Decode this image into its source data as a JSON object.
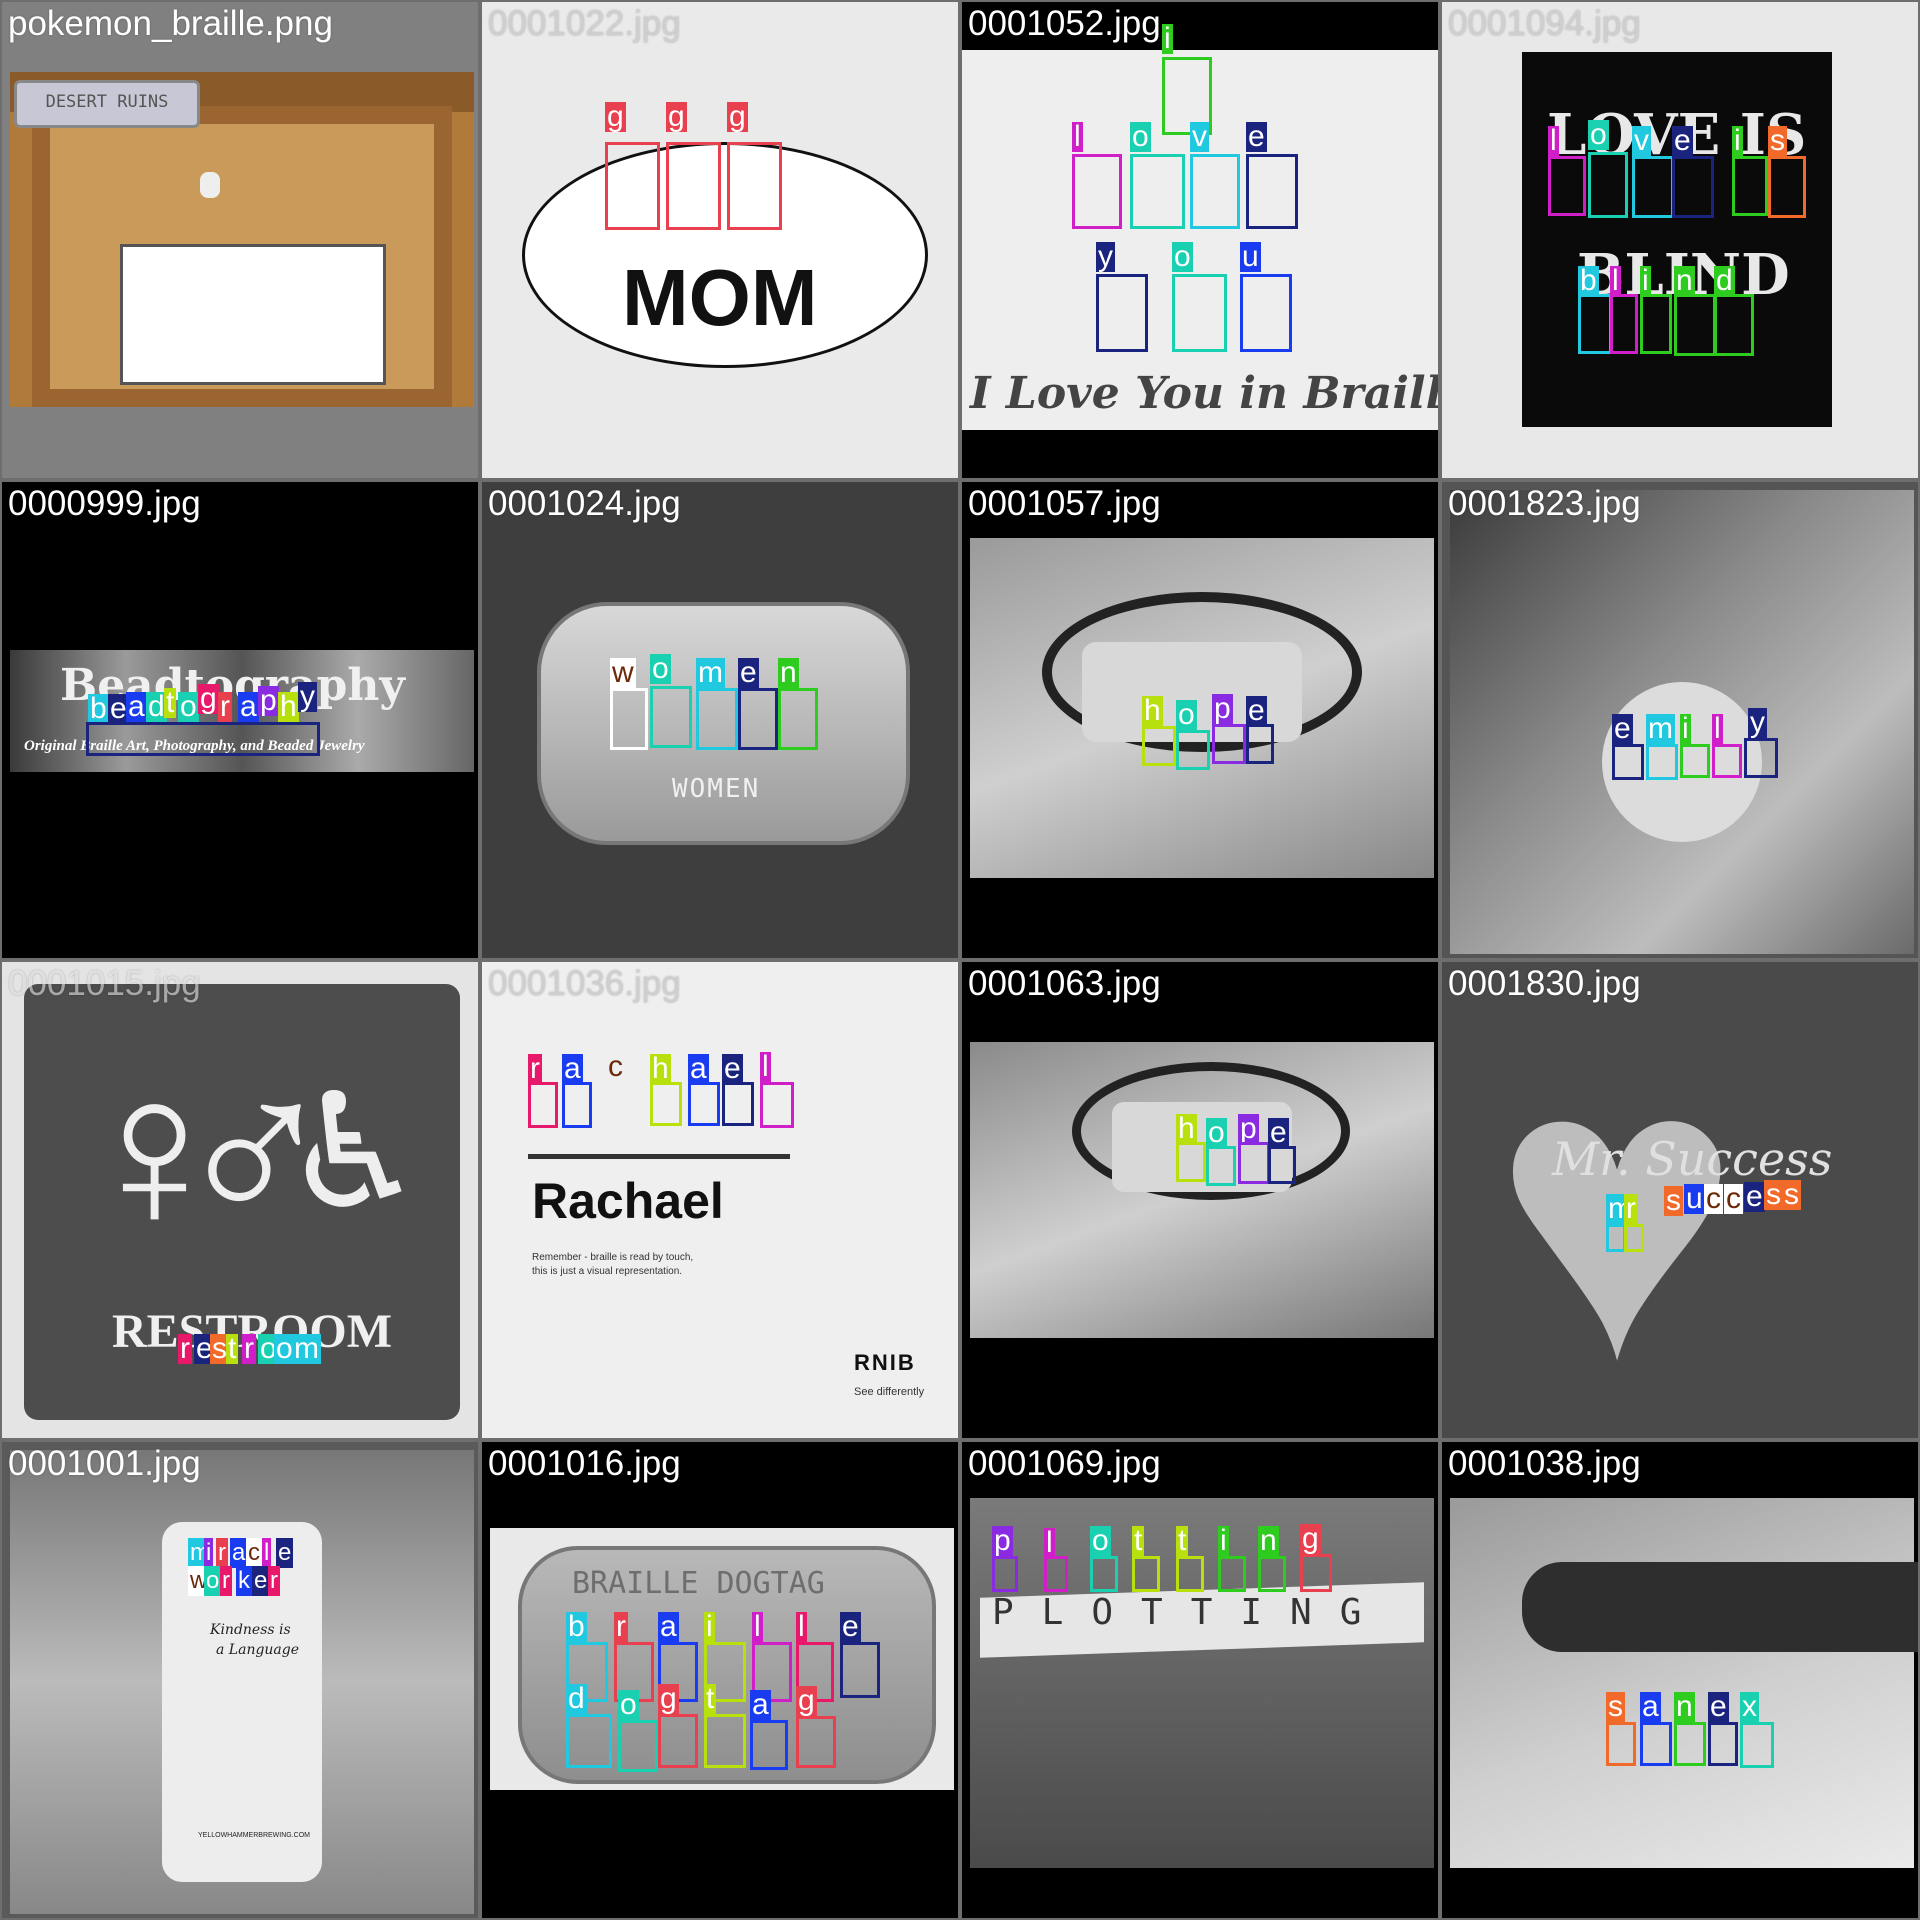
{
  "colors": {
    "red": "#e8404f",
    "teal": "#19d0b0",
    "cyan": "#20c8e0",
    "green": "#2ecc1f",
    "lime": "#b8e00c",
    "purple": "#8a2be2",
    "magenta": "#d01fc8",
    "navy": "#1a237e",
    "blue": "#1a3cf0",
    "orange": "#f26a2a",
    "pink": "#e8186a",
    "brown": "#6b2a0a"
  },
  "tiles": [
    {
      "file": "pokemon_braille.png",
      "sign": "DESERT RUINS"
    },
    {
      "file": "0001022.jpg",
      "caption": "MOM",
      "labels": [
        "g",
        "g",
        "g"
      ]
    },
    {
      "file": "0001052.jpg",
      "caption": "I Love You in Braille",
      "labels": [
        "i",
        "l",
        "o",
        "v",
        "e",
        "y",
        "o",
        "u"
      ]
    },
    {
      "file": "0001094.jpg",
      "caption1": "LOVE IS",
      "caption2": "BLIND",
      "labels": [
        "l",
        "o",
        "v",
        "e",
        "i",
        "s",
        "b",
        "l",
        "i",
        "n",
        "d"
      ]
    },
    {
      "file": "0000999.jpg",
      "caption": "Original Braille Art, Photography, and Beaded Jewelry",
      "title": "Beadtography",
      "labels": [
        "b",
        "e",
        "a",
        "d",
        "t",
        "o",
        "g",
        "r",
        "a",
        "p",
        "h",
        "y"
      ]
    },
    {
      "file": "0001024.jpg",
      "caption": "WOMEN",
      "labels": [
        "w",
        "o",
        "m",
        "e",
        "n"
      ]
    },
    {
      "file": "0001057.jpg",
      "labels": [
        "h",
        "o",
        "p",
        "e"
      ]
    },
    {
      "file": "0001823.jpg",
      "labels": [
        "e",
        "m",
        "i",
        "l",
        "y"
      ]
    },
    {
      "file": "0001015.jpg",
      "caption": "RESTROOM",
      "labels": [
        "r",
        "e",
        "s",
        "t",
        "r",
        "o",
        "o",
        "m"
      ]
    },
    {
      "file": "0001036.jpg",
      "name": "Rachael",
      "note1": "Remember - braille is read by touch,",
      "note2": "this is just a visual representation.",
      "brand": "RNIB",
      "tagline": "See differently",
      "labels": [
        "r",
        "a",
        "c",
        "h",
        "a",
        "e",
        "l"
      ]
    },
    {
      "file": "0001063.jpg",
      "labels": [
        "h",
        "o",
        "p",
        "e"
      ]
    },
    {
      "file": "0001830.jpg",
      "caption": "Mr. Success",
      "labels": [
        "m",
        "r",
        "s",
        "u",
        "c",
        "c",
        "e",
        "s",
        "s"
      ]
    },
    {
      "file": "0001001.jpg",
      "caption1": "Kindness is",
      "caption2": "a Language",
      "footer": "YELLOWHAMMERBREWING.COM",
      "labels": [
        "m",
        "i",
        "r",
        "a",
        "c",
        "l",
        "e",
        "w",
        "o",
        "r",
        "k",
        "e",
        "r"
      ]
    },
    {
      "file": "0001016.jpg",
      "caption": "BRAILLE DOGTAG",
      "labels": [
        "b",
        "r",
        "a",
        "i",
        "l",
        "l",
        "e",
        "d",
        "o",
        "g",
        "t",
        "a",
        "g"
      ]
    },
    {
      "file": "0001069.jpg",
      "caption": "PLOTTING",
      "labels": [
        "p",
        "l",
        "o",
        "t",
        "t",
        "i",
        "n",
        "g"
      ]
    },
    {
      "file": "0001038.jpg",
      "labels": [
        "s",
        "a",
        "n",
        "e",
        "x"
      ]
    }
  ]
}
